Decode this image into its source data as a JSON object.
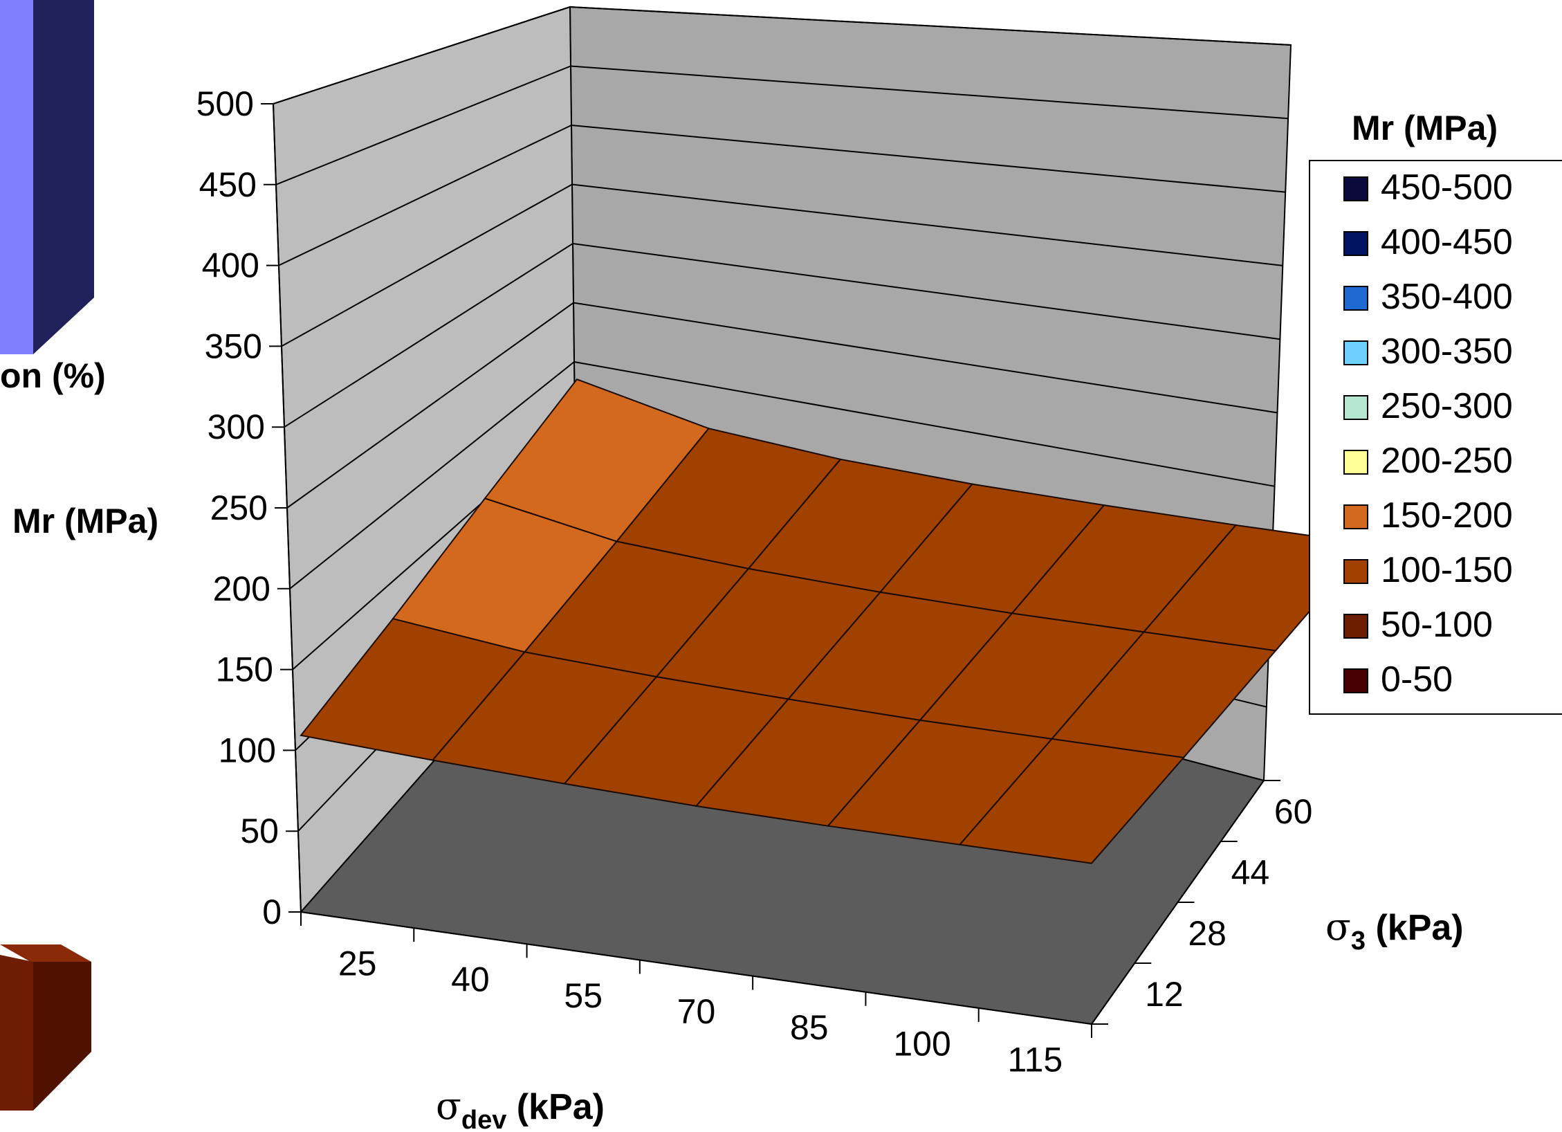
{
  "fragments": {
    "left_axis_label": "on (%)"
  },
  "colors": {
    "back_wall": "#a8a8a8",
    "side_wall": "#bdbdbd",
    "floor": "#5c5c5c",
    "fragment_bar_front": "#7f7fff",
    "fragment_bar_side": "#20205a",
    "fragment_box_front": "#6e1c04",
    "fragment_box_side": "#501200"
  },
  "chart_data": {
    "type": "surface",
    "title": "",
    "zlabel": "Mr (MPa)",
    "xlabel_symbol": "σ",
    "xlabel_sub": "dev",
    "xlabel_unit": " (kPa)",
    "ylabel_symbol": "σ",
    "ylabel_sub": "3",
    "ylabel_unit": " (kPa)",
    "x_categories": [
      "25",
      "40",
      "55",
      "70",
      "85",
      "100",
      "115"
    ],
    "y_categories": [
      "12",
      "28",
      "44",
      "60"
    ],
    "z_ticks": [
      "0",
      "50",
      "100",
      "150",
      "200",
      "250",
      "300",
      "350",
      "400",
      "450",
      "500"
    ],
    "zlim": [
      0,
      500
    ],
    "grid": true,
    "values": [
      [
        145,
        140,
        136,
        133,
        132,
        132,
        132
      ],
      [
        155,
        143,
        138,
        135,
        133,
        133,
        133
      ],
      [
        168,
        148,
        141,
        137,
        135,
        135,
        135
      ],
      [
        180,
        155,
        145,
        140,
        138,
        137,
        137
      ]
    ],
    "legend": {
      "title": "Mr (MPa)",
      "position": "right",
      "items": [
        {
          "label": "450-500",
          "color": "#0a0a3c"
        },
        {
          "label": "400-450",
          "color": "#001464"
        },
        {
          "label": "350-400",
          "color": "#1e6ad2"
        },
        {
          "label": "300-350",
          "color": "#6ed0ff"
        },
        {
          "label": "250-300",
          "color": "#b4e6d2"
        },
        {
          "label": "200-250",
          "color": "#ffff96"
        },
        {
          "label": "150-200",
          "color": "#d2691e"
        },
        {
          "label": "100-150",
          "color": "#a04100"
        },
        {
          "label": "50-100",
          "color": "#6e1e00"
        },
        {
          "label": "0-50",
          "color": "#460000"
        }
      ]
    }
  }
}
